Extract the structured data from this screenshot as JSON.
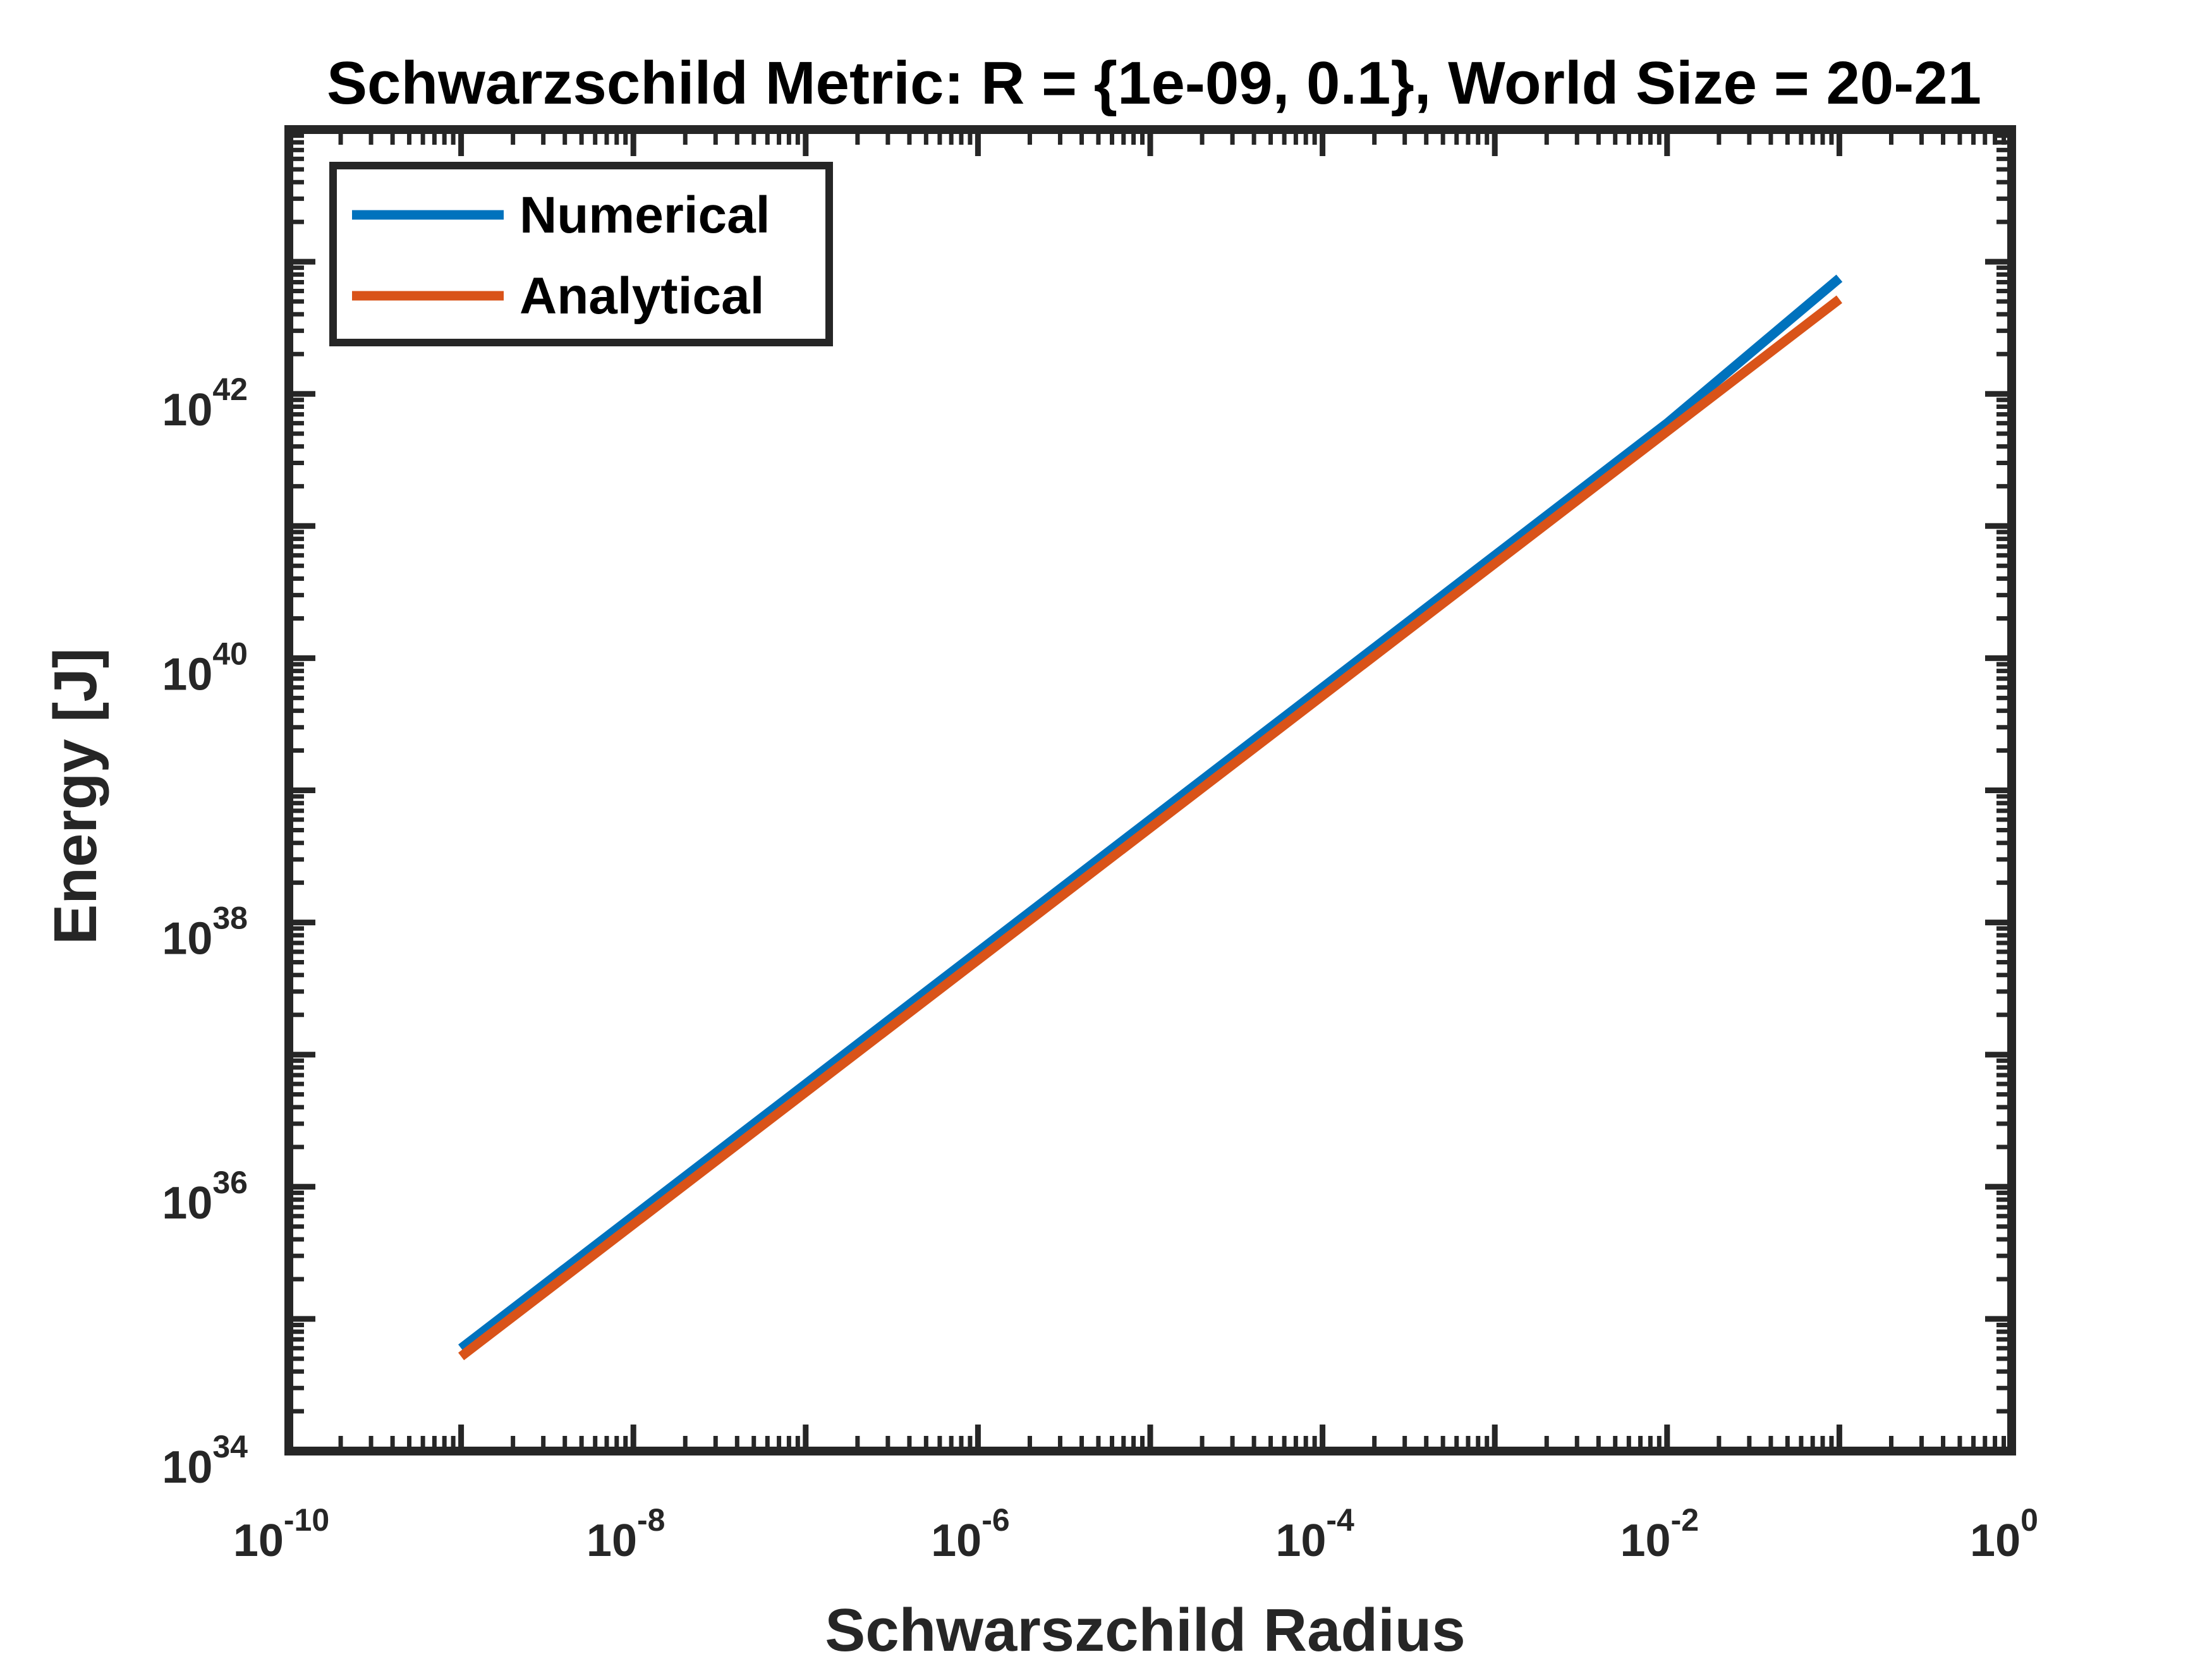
{
  "chart_data": {
    "type": "line",
    "title": "Schwarzschild Metric: R = {1e-09, 0.1}, World Size = 20-21",
    "xlabel": "Schwarszchild Radius",
    "ylabel": "Energy [J]",
    "xscale": "log",
    "yscale": "log",
    "xlim": [
      1e-10,
      1
    ],
    "ylim": [
      1e+34,
      1e+44
    ],
    "x_ticks": [
      {
        "base": "10",
        "exp": "-10",
        "value": 1e-10
      },
      {
        "base": "10",
        "exp": "-8",
        "value": 1e-08
      },
      {
        "base": "10",
        "exp": "-6",
        "value": 1e-06
      },
      {
        "base": "10",
        "exp": "-4",
        "value": 0.0001
      },
      {
        "base": "10",
        "exp": "-2",
        "value": 0.01
      },
      {
        "base": "10",
        "exp": "0",
        "value": 1
      }
    ],
    "y_ticks": [
      {
        "base": "10",
        "exp": "34",
        "value": 1e+34
      },
      {
        "base": "10",
        "exp": "36",
        "value": 1e+36
      },
      {
        "base": "10",
        "exp": "38",
        "value": 1e+38
      },
      {
        "base": "10",
        "exp": "40",
        "value": 1e+40
      },
      {
        "base": "10",
        "exp": "42",
        "value": 1e+42
      }
    ],
    "grid": false,
    "legend_position": "top-left",
    "series": [
      {
        "name": "Numerical",
        "color": "#0072BD",
        "x": [
          1e-09,
          0.01,
          0.1
        ],
        "y": [
          6e+34,
          6e+41,
          7.5e+42
        ]
      },
      {
        "name": "Analytical",
        "color": "#D95319",
        "x": [
          1e-09,
          0.1
        ],
        "y": [
          5.2e+34,
          5.2e+42
        ]
      }
    ]
  }
}
